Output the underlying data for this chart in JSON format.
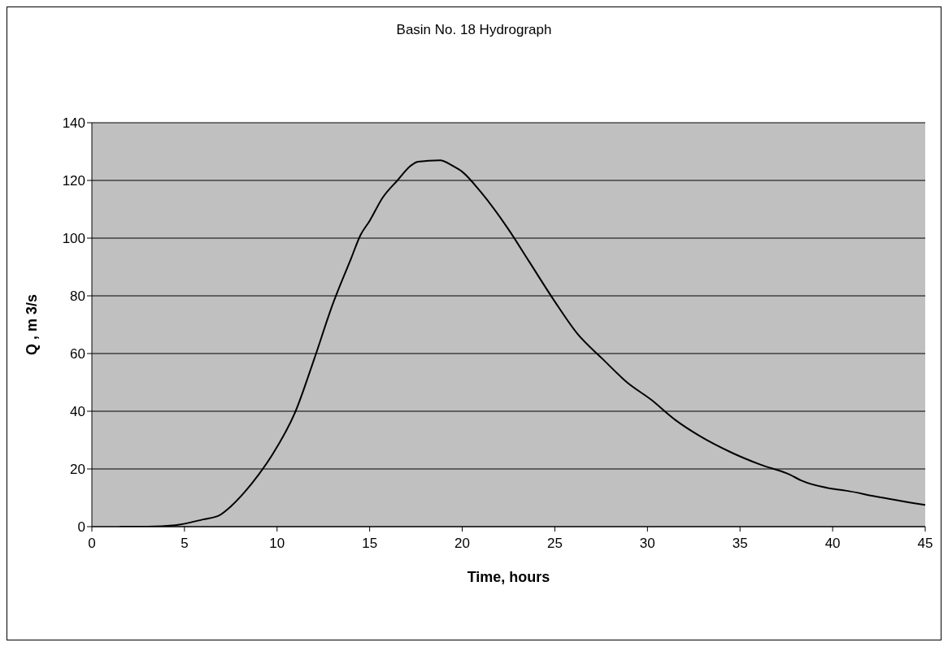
{
  "chart_data": {
    "type": "line",
    "title": "Basin No. 18  Hydrograph",
    "xlabel": "Time, hours",
    "ylabel": "Q , m 3/s",
    "x": [
      1.5,
      3,
      4.5,
      6,
      6.9,
      7.5,
      8.25,
      9,
      9.75,
      11,
      12,
      13,
      14,
      14.5,
      15,
      15.7,
      16.5,
      17.2,
      17.6,
      18.8,
      19.5,
      20,
      21,
      22.5,
      23.6,
      25,
      26.2,
      27.6,
      28.9,
      30.2,
      31.5,
      32.8,
      34.6,
      36.1,
      37.7,
      38.3,
      40.1,
      40.7,
      42.3,
      45
    ],
    "series": [
      {
        "color": "#000000",
        "values": [
          0,
          0,
          0.5,
          2.5,
          4,
          7,
          12,
          18,
          25,
          40,
          58,
          77,
          93,
          101,
          106,
          114,
          120,
          125,
          126.5,
          127,
          125,
          123,
          116,
          103,
          92,
          78,
          67,
          58,
          50,
          44,
          37,
          31.5,
          25.5,
          21.5,
          18,
          16,
          13,
          12.5,
          10.5,
          7.5
        ]
      }
    ],
    "xlim": [
      0,
      45
    ],
    "ylim": [
      0,
      140
    ],
    "xticks": [
      0,
      5,
      10,
      15,
      20,
      25,
      30,
      35,
      40,
      45
    ],
    "yticks": [
      0,
      20,
      40,
      60,
      80,
      100,
      120,
      140
    ],
    "grid": "y"
  }
}
